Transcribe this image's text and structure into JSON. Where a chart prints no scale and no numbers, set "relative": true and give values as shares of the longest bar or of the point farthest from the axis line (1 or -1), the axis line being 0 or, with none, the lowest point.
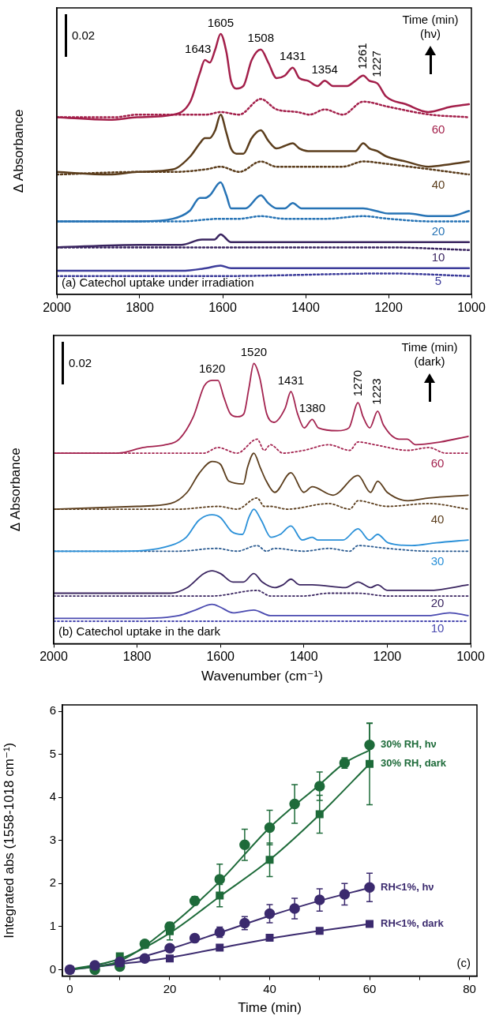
{
  "chart_data": [
    {
      "type": "line",
      "relative": true,
      "title": "(a) Catechol uptake under irradiation",
      "ylabel": "Δ Absorbance",
      "legend_title": "Time (min) (hν)",
      "legend": false,
      "xlim": [
        2000,
        1000
      ],
      "xticks": [
        2000,
        1800,
        1600,
        1400,
        1200,
        1000
      ],
      "annotations": [
        "0.02",
        {
          "text": "1643",
          "x": 1643,
          "y": 0.9
        },
        {
          "text": "1605",
          "x": 1605,
          "y": 1.0
        },
        {
          "text": "1508",
          "x": 1508,
          "y": 0.94
        },
        {
          "text": "1431",
          "x": 1431,
          "y": 0.87
        },
        {
          "text": "1354",
          "x": 1354,
          "y": 0.82
        },
        {
          "text": "1261",
          "x": 1261,
          "y": 0.84
        },
        {
          "text": "1227",
          "x": 1227,
          "y": 0.81
        }
      ],
      "series": [
        {
          "name": "60",
          "color": "#a31f4a",
          "x": [
            2000,
            1874,
            1806,
            1719,
            1678,
            1655,
            1643,
            1631,
            1618,
            1605,
            1591,
            1580,
            1567,
            1550,
            1530,
            1508,
            1490,
            1470,
            1450,
            1431,
            1415,
            1394,
            1371,
            1354,
            1334,
            1300,
            1280,
            1261,
            1246,
            1227,
            1206,
            1158,
            1104,
            1050,
            1006
          ],
          "values": [
            0.68,
            0.67,
            0.68,
            0.69,
            0.74,
            0.85,
            0.9,
            0.89,
            0.94,
            1.0,
            0.93,
            0.82,
            0.79,
            0.8,
            0.9,
            0.94,
            0.89,
            0.83,
            0.84,
            0.87,
            0.83,
            0.82,
            0.8,
            0.82,
            0.8,
            0.8,
            0.82,
            0.84,
            0.82,
            0.81,
            0.76,
            0.73,
            0.7,
            0.72,
            0.73
          ]
        },
        {
          "color": "#a31f4a",
          "line_style": "dotted",
          "x": [
            2000,
            1860,
            1806,
            1719,
            1640,
            1605,
            1560,
            1508,
            1470,
            1420,
            1390,
            1354,
            1310,
            1261,
            1200,
            1100,
            1006
          ],
          "values": [
            0.68,
            0.68,
            0.69,
            0.69,
            0.69,
            0.7,
            0.69,
            0.75,
            0.71,
            0.7,
            0.69,
            0.71,
            0.69,
            0.74,
            0.72,
            0.69,
            0.68
          ]
        },
        {
          "name": "40",
          "color": "#5b3d1c",
          "x": [
            2000,
            1874,
            1806,
            1719,
            1678,
            1655,
            1643,
            1631,
            1618,
            1605,
            1591,
            1580,
            1567,
            1550,
            1530,
            1508,
            1490,
            1470,
            1450,
            1431,
            1415,
            1394,
            1371,
            1354,
            1334,
            1300,
            1280,
            1261,
            1246,
            1227,
            1206,
            1158,
            1104,
            1050,
            1006
          ],
          "values": [
            0.47,
            0.46,
            0.47,
            0.48,
            0.53,
            0.58,
            0.6,
            0.6,
            0.63,
            0.69,
            0.62,
            0.56,
            0.54,
            0.54,
            0.6,
            0.63,
            0.59,
            0.56,
            0.57,
            0.58,
            0.56,
            0.55,
            0.55,
            0.55,
            0.55,
            0.55,
            0.55,
            0.58,
            0.56,
            0.55,
            0.53,
            0.51,
            0.49,
            0.5,
            0.51
          ]
        },
        {
          "color": "#5b3d1c",
          "line_style": "dotted",
          "x": [
            2000,
            1800,
            1720,
            1640,
            1605,
            1560,
            1508,
            1470,
            1430,
            1390,
            1354,
            1310,
            1261,
            1200,
            1150,
            1100,
            1006
          ],
          "values": [
            0.46,
            0.47,
            0.47,
            0.48,
            0.49,
            0.47,
            0.51,
            0.49,
            0.49,
            0.49,
            0.49,
            0.49,
            0.51,
            0.5,
            0.49,
            0.48,
            0.46
          ]
        },
        {
          "name": "20",
          "color": "#2673b5",
          "x": [
            2000,
            1800,
            1720,
            1680,
            1655,
            1643,
            1631,
            1605,
            1591,
            1580,
            1560,
            1545,
            1508,
            1490,
            1470,
            1450,
            1431,
            1410,
            1380,
            1354,
            1300,
            1261,
            1230,
            1200,
            1150,
            1100,
            1050,
            1006
          ],
          "values": [
            0.28,
            0.28,
            0.29,
            0.32,
            0.37,
            0.37,
            0.38,
            0.43,
            0.38,
            0.33,
            0.33,
            0.33,
            0.38,
            0.35,
            0.33,
            0.33,
            0.35,
            0.33,
            0.33,
            0.33,
            0.33,
            0.33,
            0.32,
            0.31,
            0.31,
            0.3,
            0.3,
            0.32
          ]
        },
        {
          "color": "#2673b5",
          "line_style": "dotted",
          "x": [
            2000,
            1800,
            1700,
            1605,
            1560,
            1508,
            1450,
            1350,
            1261,
            1200,
            1100,
            1006
          ],
          "values": [
            0.28,
            0.28,
            0.28,
            0.29,
            0.29,
            0.3,
            0.29,
            0.29,
            0.3,
            0.29,
            0.28,
            0.28
          ]
        },
        {
          "name": "10",
          "color": "#3a2560",
          "x": [
            2000,
            1800,
            1700,
            1650,
            1620,
            1605,
            1580,
            1550,
            1508,
            1470,
            1431,
            1400,
            1300,
            1261,
            1200,
            1100,
            1006
          ],
          "values": [
            0.18,
            0.19,
            0.19,
            0.21,
            0.21,
            0.23,
            0.2,
            0.2,
            0.2,
            0.2,
            0.2,
            0.2,
            0.2,
            0.2,
            0.2,
            0.2,
            0.2
          ]
        },
        {
          "color": "#3a2560",
          "line_style": "dotted",
          "x": [
            2000,
            1600,
            1500,
            1200,
            1006
          ],
          "values": [
            0.18,
            0.18,
            0.18,
            0.18,
            0.17
          ]
        },
        {
          "name": "5",
          "color": "#3c3c9a",
          "x": [
            2000,
            1700,
            1640,
            1605,
            1580,
            1508,
            1450,
            1300,
            1200,
            1006
          ],
          "values": [
            0.09,
            0.09,
            0.1,
            0.11,
            0.1,
            0.1,
            0.1,
            0.1,
            0.1,
            0.1
          ]
        },
        {
          "color": "#3c3c9a",
          "line_style": "dotted",
          "x": [
            2000,
            1600,
            1200,
            1006
          ],
          "values": [
            0.07,
            0.07,
            0.08,
            0.07
          ]
        }
      ]
    },
    {
      "type": "line",
      "relative": true,
      "title": "(b) Catechol uptake in the dark",
      "xlabel": "Wavenumber (cm⁻¹)",
      "ylabel": "Δ Absorbance",
      "legend_title": "Time (min) (dark)",
      "legend": false,
      "xlim": [
        2000,
        1000
      ],
      "xticks": [
        2000,
        1800,
        1600,
        1400,
        1200,
        1000
      ],
      "annotations": [
        "0.02",
        {
          "text": "1620",
          "x": 1620,
          "y": 0.94
        },
        {
          "text": "1520",
          "x": 1520,
          "y": 1.0
        },
        {
          "text": "1431",
          "x": 1431,
          "y": 0.9
        },
        {
          "text": "1380",
          "x": 1380,
          "y": 0.8
        },
        {
          "text": "1270",
          "x": 1270,
          "y": 0.86
        },
        {
          "text": "1223",
          "x": 1223,
          "y": 0.83
        }
      ],
      "series": [
        {
          "name": "60",
          "color": "#a3234f",
          "x": [
            2000,
            1846,
            1785,
            1732,
            1699,
            1665,
            1639,
            1620,
            1606,
            1592,
            1576,
            1559,
            1544,
            1532,
            1520,
            1506,
            1489,
            1472,
            1445,
            1431,
            1415,
            1399,
            1380,
            1365,
            1319,
            1292,
            1270,
            1258,
            1242,
            1223,
            1209,
            1172,
            1152,
            1132,
            1072,
            1006
          ],
          "values": [
            0.68,
            0.68,
            0.7,
            0.71,
            0.73,
            0.81,
            0.92,
            0.94,
            0.94,
            0.88,
            0.82,
            0.81,
            0.82,
            0.91,
            1.0,
            0.95,
            0.82,
            0.79,
            0.84,
            0.9,
            0.82,
            0.77,
            0.8,
            0.77,
            0.76,
            0.77,
            0.86,
            0.81,
            0.77,
            0.83,
            0.78,
            0.73,
            0.73,
            0.71,
            0.72,
            0.74
          ]
        },
        {
          "color": "#a3234f",
          "line_style": "dotted",
          "x": [
            2000,
            1800,
            1700,
            1640,
            1606,
            1560,
            1512,
            1495,
            1480,
            1450,
            1400,
            1340,
            1290,
            1270,
            1230,
            1150,
            1100,
            1060,
            1006
          ],
          "values": [
            0.68,
            0.68,
            0.68,
            0.68,
            0.7,
            0.68,
            0.73,
            0.69,
            0.71,
            0.68,
            0.69,
            0.71,
            0.69,
            0.72,
            0.71,
            0.69,
            0.7,
            0.68,
            0.68
          ]
        },
        {
          "name": "40",
          "color": "#5b3d1c",
          "x": [
            2000,
            1800,
            1720,
            1680,
            1650,
            1620,
            1600,
            1580,
            1545,
            1535,
            1520,
            1505,
            1490,
            1470,
            1431,
            1400,
            1380,
            1330,
            1270,
            1240,
            1223,
            1200,
            1150,
            1100,
            1006
          ],
          "values": [
            0.48,
            0.49,
            0.5,
            0.54,
            0.61,
            0.65,
            0.64,
            0.58,
            0.57,
            0.63,
            0.68,
            0.63,
            0.58,
            0.54,
            0.61,
            0.54,
            0.56,
            0.53,
            0.6,
            0.54,
            0.58,
            0.54,
            0.51,
            0.52,
            0.53
          ]
        },
        {
          "color": "#5b3d1c",
          "line_style": "dotted",
          "x": [
            2000,
            1800,
            1700,
            1605,
            1560,
            1512,
            1495,
            1480,
            1440,
            1340,
            1290,
            1270,
            1200,
            1100,
            1006
          ],
          "values": [
            0.48,
            0.48,
            0.48,
            0.49,
            0.48,
            0.52,
            0.49,
            0.49,
            0.48,
            0.5,
            0.48,
            0.51,
            0.49,
            0.5,
            0.48
          ]
        },
        {
          "name": "30",
          "color": "#2a90d8",
          "x": [
            2000,
            1848,
            1720,
            1682,
            1652,
            1620,
            1600,
            1573,
            1547,
            1532,
            1520,
            1502,
            1479,
            1457,
            1431,
            1404,
            1380,
            1367,
            1306,
            1270,
            1243,
            1223,
            1198,
            1141,
            1082,
            1006
          ],
          "values": [
            0.33,
            0.33,
            0.35,
            0.38,
            0.44,
            0.46,
            0.45,
            0.4,
            0.39,
            0.45,
            0.48,
            0.44,
            0.38,
            0.39,
            0.42,
            0.37,
            0.38,
            0.37,
            0.37,
            0.41,
            0.37,
            0.39,
            0.36,
            0.35,
            0.36,
            0.37
          ]
        },
        {
          "color": "#2a5a90",
          "line_style": "dotted",
          "x": [
            2000,
            1800,
            1700,
            1610,
            1560,
            1512,
            1490,
            1470,
            1400,
            1340,
            1290,
            1270,
            1200,
            1100,
            1006
          ],
          "values": [
            0.33,
            0.33,
            0.33,
            0.34,
            0.33,
            0.35,
            0.33,
            0.34,
            0.33,
            0.34,
            0.33,
            0.35,
            0.34,
            0.33,
            0.33
          ]
        },
        {
          "name": "20",
          "color": "#3a2560",
          "x": [
            2000,
            1800,
            1720,
            1680,
            1640,
            1620,
            1600,
            1570,
            1545,
            1520,
            1500,
            1470,
            1450,
            1431,
            1410,
            1380,
            1300,
            1270,
            1240,
            1223,
            1200,
            1100,
            1006
          ],
          "values": [
            0.18,
            0.18,
            0.18,
            0.2,
            0.25,
            0.26,
            0.25,
            0.22,
            0.22,
            0.25,
            0.22,
            0.2,
            0.21,
            0.23,
            0.21,
            0.21,
            0.2,
            0.22,
            0.2,
            0.21,
            0.19,
            0.19,
            0.21
          ]
        },
        {
          "color": "#3a2560",
          "line_style": "dotted",
          "x": [
            2000,
            1800,
            1620,
            1512,
            1480,
            1400,
            1340,
            1270,
            1200,
            1006
          ],
          "values": [
            0.17,
            0.17,
            0.17,
            0.19,
            0.17,
            0.17,
            0.18,
            0.18,
            0.17,
            0.17
          ]
        },
        {
          "name": "10",
          "color": "#4a4ab0",
          "x": [
            2000,
            1800,
            1700,
            1660,
            1620,
            1600,
            1570,
            1520,
            1480,
            1431,
            1300,
            1100,
            1050,
            1006
          ],
          "values": [
            0.09,
            0.09,
            0.1,
            0.12,
            0.14,
            0.13,
            0.11,
            0.12,
            0.1,
            0.1,
            0.1,
            0.1,
            0.11,
            0.1
          ]
        },
        {
          "color": "#4a4ab0",
          "line_style": "dotted",
          "x": [
            2000,
            1600,
            1200,
            1006
          ],
          "values": [
            0.08,
            0.08,
            0.08,
            0.08
          ]
        }
      ]
    },
    {
      "type": "scatter",
      "xlabel": "Time (min)",
      "ylabel": "Integrated abs (1558-1018 cm⁻¹)",
      "legend": false,
      "xlim": [
        -1.5,
        81.5
      ],
      "ylim": [
        -0.15,
        6.15
      ],
      "xticks": [
        0,
        {
          "value": 10,
          "label": null
        },
        20,
        {
          "value": 30,
          "label": null
        },
        40,
        {
          "value": 50,
          "label": null
        },
        60,
        {
          "value": 70,
          "label": null
        },
        80
      ],
      "yticks": [
        0,
        1,
        2,
        3,
        4,
        5,
        6
      ],
      "annotations": [
        "(c)"
      ],
      "series": [
        {
          "name": "30% RH, hν",
          "color": "#1e6b3a",
          "marker": "circle",
          "x": [
            5,
            10,
            15,
            20,
            25,
            30,
            35,
            40,
            45,
            50,
            55,
            60
          ],
          "values": [
            0,
            0.07,
            0.6,
            1.0,
            1.6,
            2.1,
            2.9,
            3.3,
            3.85,
            4.26,
            4.8,
            5.22
          ],
          "errors": [
            null,
            null,
            null,
            0.1,
            0.1,
            0.35,
            0.36,
            0.4,
            0.45,
            0.33,
            0.12,
            0.5
          ]
        },
        {
          "name": "30% RH, dark",
          "color": "#1e6b3a",
          "marker": "square",
          "x": [
            10,
            15,
            20,
            30,
            40,
            50,
            60
          ],
          "values": [
            0.31,
            0.58,
            0.89,
            1.72,
            2.55,
            3.61,
            4.78
          ],
          "errors": [
            null,
            null,
            0.2,
            0.26,
            0.39,
            0.44,
            0.95
          ]
        },
        {
          "name": "RH<1%, hν",
          "color": "#3b2a6e",
          "marker": "circle",
          "x": [
            0,
            5,
            10,
            15,
            20,
            25,
            30,
            35,
            40,
            45,
            50,
            55,
            60
          ],
          "values": [
            0,
            0.1,
            0.18,
            0.26,
            0.5,
            0.73,
            0.87,
            1.08,
            1.3,
            1.42,
            1.62,
            1.75,
            1.91
          ],
          "errors": [
            null,
            null,
            null,
            null,
            null,
            0.08,
            0.12,
            0.15,
            0.21,
            0.24,
            0.26,
            0.25,
            0.33
          ]
        },
        {
          "name": "RH<1%, dark",
          "color": "#3b2a6e",
          "marker": "square",
          "x": [
            0,
            10,
            20,
            30,
            40,
            50,
            60
          ],
          "values": [
            0,
            0.15,
            0.26,
            0.51,
            0.74,
            0.9,
            1.06
          ]
        },
        {
          "type": "line",
          "color": "#1e6b3a",
          "x": [
            0,
            10,
            20,
            30,
            40,
            50,
            55,
            60
          ],
          "values": [
            0,
            0.2,
            1.0,
            2.05,
            3.3,
            4.3,
            4.8,
            5.1
          ]
        },
        {
          "type": "line",
          "color": "#1e6b3a",
          "x": [
            0,
            10,
            20,
            30,
            40,
            50,
            60
          ],
          "values": [
            0,
            0.25,
            0.85,
            1.7,
            2.55,
            3.6,
            4.78
          ]
        },
        {
          "type": "line",
          "color": "#3b2a6e",
          "x": [
            0,
            10,
            20,
            30,
            40,
            50,
            60
          ],
          "values": [
            0,
            0.17,
            0.48,
            0.86,
            1.25,
            1.6,
            1.9
          ]
        },
        {
          "type": "line",
          "color": "#3b2a6e",
          "x": [
            0,
            10,
            20,
            30,
            40,
            50,
            60
          ],
          "values": [
            0,
            0.13,
            0.28,
            0.5,
            0.72,
            0.9,
            1.06
          ]
        }
      ]
    }
  ]
}
